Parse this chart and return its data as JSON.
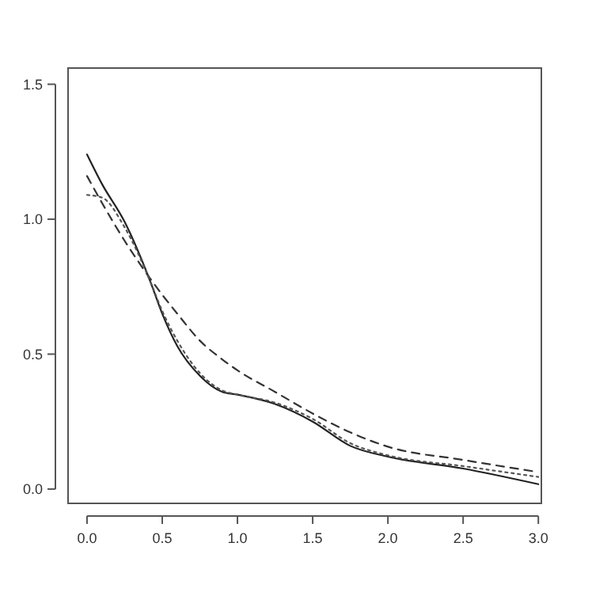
{
  "chart_data": {
    "type": "line",
    "x": [
      0,
      0.1,
      0.25,
      0.42,
      0.5,
      0.6,
      0.75,
      0.9,
      1.0,
      1.25,
      1.5,
      1.75,
      2.0,
      2.5,
      3.0
    ],
    "series": [
      {
        "color": "#222222",
        "line_style": "solid",
        "values": [
          1.24,
          1.13,
          0.99,
          0.77,
          0.65,
          0.53,
          0.42,
          0.36,
          0.35,
          0.315,
          0.25,
          0.16,
          0.12,
          0.076,
          0.018
        ]
      },
      {
        "color": "#333333",
        "line_style": "dashed",
        "values": [
          1.16,
          1.06,
          0.92,
          0.78,
          0.72,
          0.65,
          0.55,
          0.48,
          0.44,
          0.36,
          0.28,
          0.21,
          0.157,
          0.108,
          0.063
        ]
      },
      {
        "color": "#555555",
        "line_style": "dotted",
        "values": [
          1.09,
          1.08,
          0.97,
          0.77,
          0.66,
          0.55,
          0.43,
          0.365,
          0.35,
          0.32,
          0.26,
          0.17,
          0.125,
          0.085,
          0.045
        ]
      }
    ],
    "xlim": [
      -0.126,
      3.02
    ],
    "ylim": [
      -0.053,
      1.56
    ],
    "xticks": [
      {
        "value": 0,
        "label": "0.0"
      },
      {
        "value": 0.5,
        "label": "0.5"
      },
      {
        "value": 1,
        "label": "1.0"
      },
      {
        "value": 1.5,
        "label": "1.5"
      },
      {
        "value": 2,
        "label": "2.0"
      },
      {
        "value": 2.5,
        "label": "2.5"
      },
      {
        "value": 3,
        "label": "3.0"
      }
    ],
    "yticks": [
      {
        "value": 0,
        "label": "0.0"
      },
      {
        "value": 0.5,
        "label": "0.5"
      },
      {
        "value": 1,
        "label": "1.0"
      },
      {
        "value": 1.5,
        "label": "1.5"
      }
    ],
    "marker": "none",
    "grid": false
  }
}
